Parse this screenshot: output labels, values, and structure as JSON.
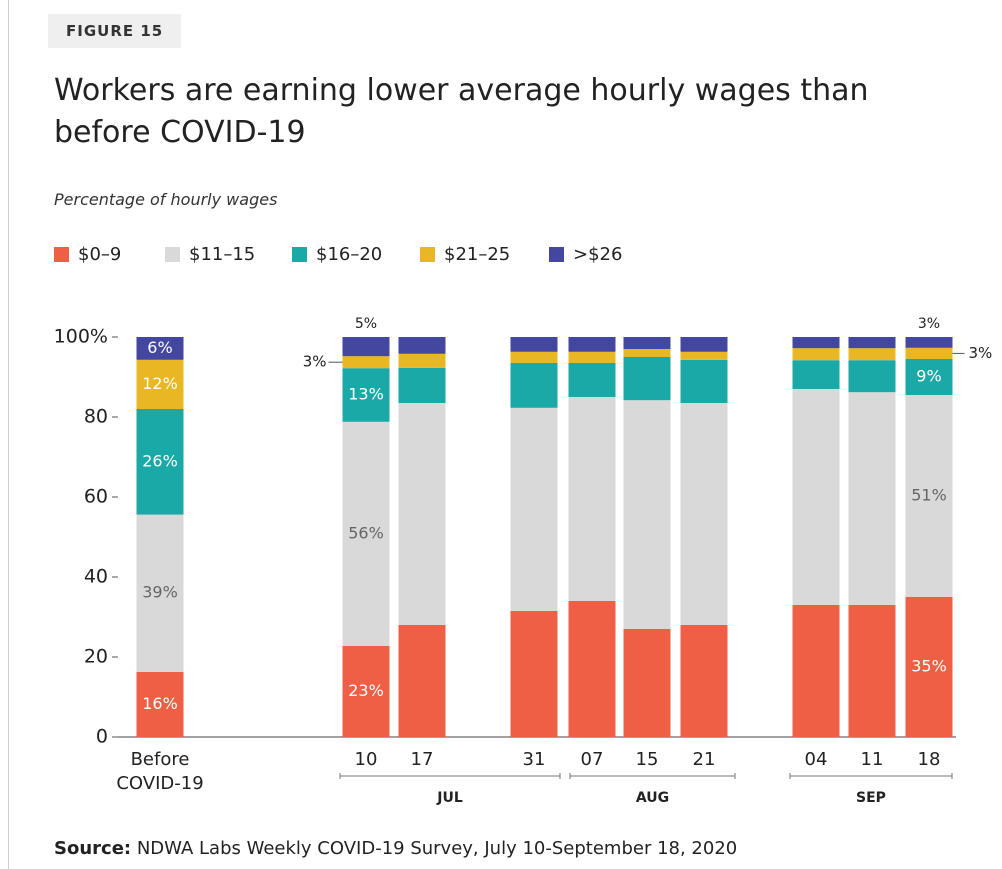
{
  "figure_label": "FIGURE 15",
  "source_label": "Source:",
  "source": "NDWA Labs Weekly COVID-19 Survey, July 10-September 18, 2020",
  "chart_data": {
    "type": "stacked_bar",
    "title": "Workers are earning lower average hourly wages than before COVID-19",
    "subtitle": "Percentage of hourly wages",
    "categories": [
      "Before COVID-19",
      "10",
      "17",
      "31",
      "07",
      "15",
      "21",
      "04",
      "11",
      "18"
    ],
    "x_groups": [
      {
        "label": "JUL"
      },
      {
        "label": "AUG"
      },
      {
        "label": "SEP"
      }
    ],
    "series": [
      {
        "name": "$0–9",
        "color": "#ef5f46",
        "values": [
          16.3,
          22.8,
          28,
          31.5,
          34,
          27,
          28,
          33,
          33,
          35
        ],
        "value_labels": [
          "16%",
          "23%",
          null,
          null,
          null,
          null,
          null,
          null,
          null,
          "35%"
        ]
      },
      {
        "name": "$11–15",
        "color": "#d9d9d9",
        "values": [
          39.3,
          56.0,
          55.5,
          50.8,
          51,
          57.2,
          55.5,
          54,
          53.2,
          50.5
        ],
        "value_labels": [
          "39%",
          "56%",
          null,
          null,
          null,
          null,
          null,
          null,
          null,
          "51%"
        ]
      },
      {
        "name": "$16–20",
        "color": "#1aa9a6",
        "values": [
          26.4,
          13.4,
          8.8,
          11.2,
          8.5,
          10.8,
          10.8,
          7.2,
          8,
          9
        ],
        "value_labels": [
          "26%",
          "13%",
          null,
          null,
          null,
          null,
          null,
          null,
          null,
          "9%"
        ]
      },
      {
        "name": "$21–25",
        "color": "#e9b723",
        "values": [
          12.3,
          3.0,
          3.5,
          2.8,
          2.8,
          2,
          2,
          3,
          3,
          2.8
        ],
        "value_labels": [
          "12%",
          "3%",
          null,
          null,
          null,
          null,
          null,
          null,
          null,
          "3%"
        ]
      },
      {
        "name": ">$26",
        "color": "#4447a0",
        "values": [
          5.7,
          4.8,
          4.2,
          3.7,
          3.7,
          3,
          3.7,
          2.8,
          2.8,
          2.7
        ],
        "value_labels": [
          "6%",
          "5%",
          null,
          null,
          null,
          null,
          null,
          null,
          null,
          "3%"
        ]
      }
    ],
    "ylim": [
      0,
      100
    ],
    "yticks": [
      0,
      20,
      40,
      60,
      80,
      {
        "value": 100,
        "label": "100%"
      }
    ],
    "grid": false
  }
}
